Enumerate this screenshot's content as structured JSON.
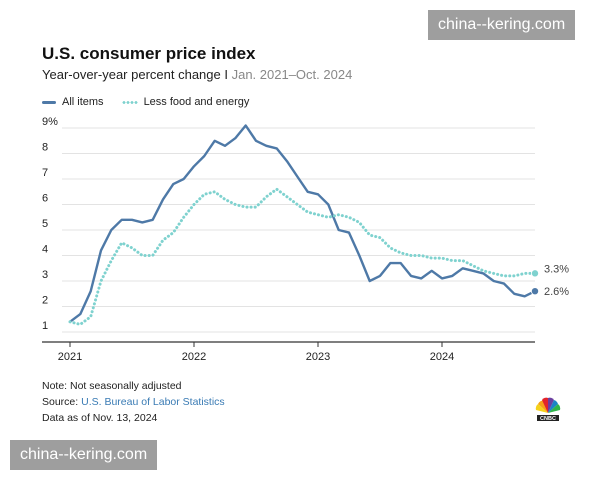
{
  "watermark": "china--kering.com",
  "header": {
    "title": "U.S. consumer price index",
    "subtitle_main": "Year-over-year percent change",
    "subtitle_sep": " I ",
    "subtitle_range": "Jan. 2021–Oct. 2024"
  },
  "legend": {
    "all_items": "All items",
    "core": "Less food and energy"
  },
  "footer": {
    "note": "Note: Not seasonally adjusted",
    "source_label": "Source: ",
    "source": "U.S. Bureau of Labor Statistics",
    "date": "Data as of Nov. 13, 2024"
  },
  "colors": {
    "all_items": "#4e79a7",
    "core": "#7fd2cf",
    "grid": "#e3e3e3",
    "axis": "#333333"
  },
  "chart_data": {
    "type": "line",
    "title": "U.S. consumer price index",
    "subtitle": "Year-over-year percent change I Jan. 2021–Oct. 2024",
    "xlabel": "",
    "ylabel": "",
    "x_ticks": [
      "2021",
      "2022",
      "2023",
      "2024"
    ],
    "y_ticks": [
      "1",
      "2",
      "3",
      "4",
      "5",
      "6",
      "7",
      "8",
      "9%"
    ],
    "ylim": [
      1,
      9
    ],
    "x_start": "Jan. 2021",
    "x_end": "Oct. 2024",
    "grid": true,
    "legend_position": "top-left",
    "series": [
      {
        "name": "All items",
        "style": "solid",
        "values": [
          1.4,
          1.7,
          2.6,
          4.2,
          5.0,
          5.4,
          5.4,
          5.3,
          5.4,
          6.2,
          6.8,
          7.0,
          7.5,
          7.9,
          8.5,
          8.3,
          8.6,
          9.1,
          8.5,
          8.3,
          8.2,
          7.7,
          7.1,
          6.5,
          6.4,
          6.0,
          5.0,
          4.9,
          4.0,
          3.0,
          3.2,
          3.7,
          3.7,
          3.2,
          3.1,
          3.4,
          3.1,
          3.2,
          3.5,
          3.4,
          3.3,
          3.0,
          2.9,
          2.5,
          2.4,
          2.6
        ],
        "end_label": "2.6%"
      },
      {
        "name": "Less food and energy",
        "style": "dotted",
        "values": [
          1.4,
          1.3,
          1.6,
          3.0,
          3.8,
          4.5,
          4.3,
          4.0,
          4.0,
          4.6,
          4.9,
          5.5,
          6.0,
          6.4,
          6.5,
          6.2,
          6.0,
          5.9,
          5.9,
          6.3,
          6.6,
          6.3,
          6.0,
          5.7,
          5.6,
          5.5,
          5.6,
          5.5,
          5.3,
          4.8,
          4.7,
          4.3,
          4.1,
          4.0,
          4.0,
          3.9,
          3.9,
          3.8,
          3.8,
          3.6,
          3.4,
          3.3,
          3.2,
          3.2,
          3.3,
          3.3
        ],
        "end_label": "3.3%"
      }
    ]
  }
}
